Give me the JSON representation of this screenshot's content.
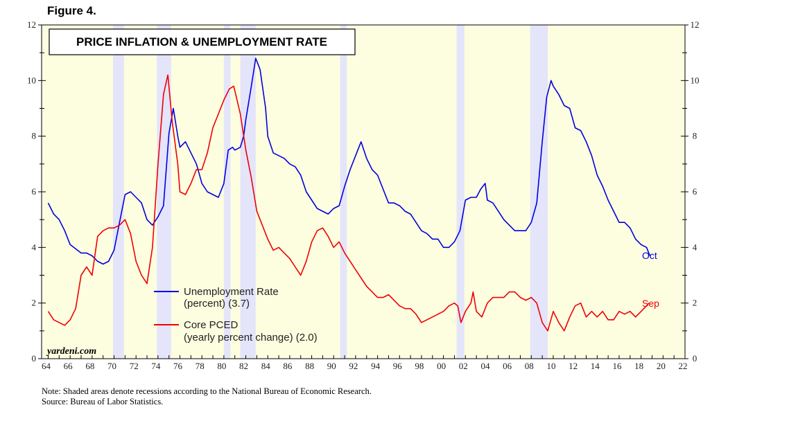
{
  "figure_label": "Figure 4.",
  "footnote": {
    "note": "Note: Shaded areas denote recessions according to the National Bureau of Economic Research.",
    "source": "Source: Bureau of Labor Statistics."
  },
  "colors": {
    "plot_bg": "#fdfde0",
    "recession": "#e4e4fb",
    "unemployment": "#0000dd",
    "core_pced": "#ee0000"
  },
  "chart_data": {
    "type": "line",
    "title": "PRICE INFLATION & UNEMPLOYMENT RATE",
    "watermark": "yardeni.com",
    "xlim": [
      1963.4,
      2022.0
    ],
    "ylim": [
      0,
      12
    ],
    "x_ticks": [
      "64",
      "66",
      "68",
      "70",
      "72",
      "74",
      "76",
      "78",
      "80",
      "82",
      "84",
      "86",
      "88",
      "90",
      "92",
      "94",
      "96",
      "98",
      "00",
      "02",
      "04",
      "06",
      "08",
      "10",
      "12",
      "14",
      "16",
      "18",
      "20",
      "22"
    ],
    "x_tick_years": [
      1964,
      1966,
      1968,
      1970,
      1972,
      1974,
      1976,
      1978,
      1980,
      1982,
      1984,
      1986,
      1988,
      1990,
      1992,
      1994,
      1996,
      1998,
      2000,
      2002,
      2004,
      2006,
      2008,
      2010,
      2012,
      2014,
      2016,
      2018,
      2020,
      2022
    ],
    "y_ticks_left": [
      "0",
      "2",
      "4",
      "6",
      "8",
      "10",
      "12"
    ],
    "y_ticks_right": [
      "0",
      "2",
      "4",
      "6",
      "8",
      "10",
      "12"
    ],
    "y_tick_values": [
      0,
      2,
      4,
      6,
      8,
      10,
      12
    ],
    "recessions": [
      [
        1969.9,
        1970.9
      ],
      [
        1973.9,
        1975.2
      ],
      [
        1980.0,
        1980.6
      ],
      [
        1981.5,
        1982.9
      ],
      [
        1990.6,
        1991.2
      ],
      [
        2001.2,
        2001.9
      ],
      [
        2007.9,
        2009.5
      ]
    ],
    "series": [
      {
        "name": "Unemployment Rate",
        "description": "(percent) (3.7)",
        "end_label": "Oct",
        "color": "#0000dd",
        "x": [
          1964.0,
          1964.5,
          1965.0,
          1965.5,
          1966.0,
          1967.0,
          1967.5,
          1968.0,
          1968.5,
          1969.0,
          1969.5,
          1970.0,
          1970.5,
          1971.0,
          1971.5,
          1972.0,
          1972.5,
          1973.0,
          1973.5,
          1974.0,
          1974.5,
          1975.0,
          1975.4,
          1975.8,
          1976.0,
          1976.5,
          1977.0,
          1977.5,
          1978.0,
          1978.5,
          1979.0,
          1979.5,
          1980.0,
          1980.4,
          1980.8,
          1981.0,
          1981.5,
          1981.8,
          1982.0,
          1982.5,
          1982.9,
          1983.3,
          1983.8,
          1984.0,
          1984.5,
          1985.0,
          1985.5,
          1986.0,
          1986.5,
          1987.0,
          1987.5,
          1988.0,
          1988.5,
          1989.0,
          1989.5,
          1990.0,
          1990.5,
          1991.0,
          1991.5,
          1992.0,
          1992.5,
          1993.0,
          1993.5,
          1994.0,
          1994.5,
          1995.0,
          1995.5,
          1996.0,
          1996.5,
          1997.0,
          1997.5,
          1998.0,
          1998.5,
          1999.0,
          1999.5,
          2000.0,
          2000.5,
          2001.0,
          2001.5,
          2002.0,
          2002.5,
          2003.0,
          2003.4,
          2003.8,
          2004.0,
          2004.5,
          2005.0,
          2005.5,
          2006.0,
          2006.5,
          2007.0,
          2007.5,
          2008.0,
          2008.5,
          2009.0,
          2009.4,
          2009.8,
          2010.0,
          2010.5,
          2011.0,
          2011.5,
          2012.0,
          2012.5,
          2013.0,
          2013.5,
          2014.0,
          2014.5,
          2015.0,
          2015.5,
          2016.0,
          2016.5,
          2017.0,
          2017.5,
          2018.0,
          2018.5,
          2018.8
        ],
        "y": [
          5.6,
          5.2,
          5.0,
          4.6,
          4.1,
          3.8,
          3.8,
          3.7,
          3.5,
          3.4,
          3.5,
          3.9,
          4.9,
          5.9,
          6.0,
          5.8,
          5.6,
          5.0,
          4.8,
          5.1,
          5.5,
          8.1,
          9.0,
          8.0,
          7.6,
          7.8,
          7.4,
          7.0,
          6.3,
          6.0,
          5.9,
          5.8,
          6.3,
          7.5,
          7.6,
          7.5,
          7.6,
          8.0,
          8.6,
          9.8,
          10.8,
          10.4,
          9.0,
          8.0,
          7.4,
          7.3,
          7.2,
          7.0,
          6.9,
          6.6,
          6.0,
          5.7,
          5.4,
          5.3,
          5.2,
          5.4,
          5.5,
          6.2,
          6.8,
          7.3,
          7.8,
          7.2,
          6.8,
          6.6,
          6.1,
          5.6,
          5.6,
          5.5,
          5.3,
          5.2,
          4.9,
          4.6,
          4.5,
          4.3,
          4.3,
          4.0,
          4.0,
          4.2,
          4.6,
          5.7,
          5.8,
          5.8,
          6.1,
          6.3,
          5.7,
          5.6,
          5.3,
          5.0,
          4.8,
          4.6,
          4.6,
          4.6,
          4.9,
          5.6,
          7.8,
          9.4,
          10.0,
          9.8,
          9.5,
          9.1,
          9.0,
          8.3,
          8.2,
          7.8,
          7.3,
          6.6,
          6.2,
          5.7,
          5.3,
          4.9,
          4.9,
          4.7,
          4.3,
          4.1,
          4.0,
          3.7
        ],
        "points_note": "read off the chart"
      },
      {
        "name": "Core PCED",
        "description": "(yearly percent change) (2.0)",
        "end_label": "Sep",
        "color": "#ee0000",
        "x": [
          1964.0,
          1964.5,
          1965.0,
          1965.5,
          1966.0,
          1966.5,
          1967.0,
          1967.5,
          1968.0,
          1968.5,
          1969.0,
          1969.5,
          1970.0,
          1970.5,
          1971.0,
          1971.5,
          1972.0,
          1972.5,
          1973.0,
          1973.5,
          1974.0,
          1974.5,
          1974.9,
          1975.3,
          1975.8,
          1976.0,
          1976.5,
          1977.0,
          1977.5,
          1978.0,
          1978.5,
          1979.0,
          1979.5,
          1980.0,
          1980.5,
          1980.9,
          1981.2,
          1981.5,
          1982.0,
          1982.5,
          1983.0,
          1983.5,
          1984.0,
          1984.5,
          1985.0,
          1985.5,
          1986.0,
          1986.5,
          1987.0,
          1987.5,
          1988.0,
          1988.5,
          1989.0,
          1989.5,
          1990.0,
          1990.5,
          1991.0,
          1991.5,
          1992.0,
          1992.5,
          1993.0,
          1993.5,
          1994.0,
          1994.5,
          1995.0,
          1995.5,
          1996.0,
          1996.5,
          1997.0,
          1997.5,
          1998.0,
          1998.5,
          1999.0,
          1999.5,
          2000.0,
          2000.5,
          2001.0,
          2001.3,
          2001.6,
          2002.0,
          2002.5,
          2002.7,
          2003.0,
          2003.5,
          2004.0,
          2004.5,
          2005.0,
          2005.5,
          2006.0,
          2006.5,
          2007.0,
          2007.5,
          2008.0,
          2008.5,
          2009.0,
          2009.5,
          2010.0,
          2010.5,
          2011.0,
          2011.5,
          2012.0,
          2012.5,
          2013.0,
          2013.5,
          2014.0,
          2014.5,
          2015.0,
          2015.5,
          2016.0,
          2016.5,
          2017.0,
          2017.5,
          2018.0,
          2018.5,
          2018.7
        ],
        "y": [
          1.7,
          1.4,
          1.3,
          1.2,
          1.4,
          1.8,
          3.0,
          3.3,
          3.0,
          4.4,
          4.6,
          4.7,
          4.7,
          4.8,
          5.0,
          4.5,
          3.5,
          3.0,
          2.7,
          4.0,
          7.0,
          9.5,
          10.2,
          8.5,
          7.0,
          6.0,
          5.9,
          6.3,
          6.8,
          6.8,
          7.4,
          8.3,
          8.8,
          9.3,
          9.7,
          9.8,
          9.3,
          8.8,
          7.5,
          6.5,
          5.3,
          4.8,
          4.3,
          3.9,
          4.0,
          3.8,
          3.6,
          3.3,
          3.0,
          3.5,
          4.2,
          4.6,
          4.7,
          4.4,
          4.0,
          4.2,
          3.8,
          3.5,
          3.2,
          2.9,
          2.6,
          2.4,
          2.2,
          2.2,
          2.3,
          2.1,
          1.9,
          1.8,
          1.8,
          1.6,
          1.3,
          1.4,
          1.5,
          1.6,
          1.7,
          1.9,
          2.0,
          1.9,
          1.3,
          1.7,
          2.0,
          2.4,
          1.7,
          1.5,
          2.0,
          2.2,
          2.2,
          2.2,
          2.4,
          2.4,
          2.2,
          2.1,
          2.2,
          2.0,
          1.3,
          1.0,
          1.7,
          1.3,
          1.0,
          1.5,
          1.9,
          2.0,
          1.5,
          1.7,
          1.5,
          1.7,
          1.4,
          1.4,
          1.7,
          1.6,
          1.7,
          1.5,
          1.7,
          1.9,
          2.0
        ],
        "points_note": "read off the chart"
      }
    ]
  }
}
